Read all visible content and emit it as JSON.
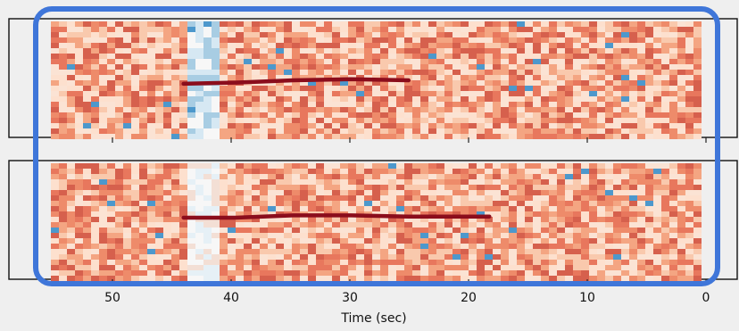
{
  "chart_data": [
    {
      "type": "heatmap",
      "panel": "top",
      "x_range": [
        56,
        0
      ],
      "time_axis_reversed": true,
      "colormap": "diverging red-blue (RdBu_r)",
      "track": {
        "start_time": 44.5,
        "end_time": 25,
        "color": "#8b0d1c",
        "note_values": [
          {
            "t": 44.5,
            "y": 0.55
          },
          {
            "t": 40,
            "y": 0.54
          },
          {
            "t": 35,
            "y": 0.52
          },
          {
            "t": 30,
            "y": 0.51
          },
          {
            "t": 25,
            "y": 0.52
          }
        ]
      },
      "low_band": {
        "t_start": 44.7,
        "t_end": 41.8,
        "color": "#4d98cc"
      }
    },
    {
      "type": "heatmap",
      "panel": "bottom",
      "x_range": [
        56,
        0
      ],
      "time_axis_reversed": true,
      "colormap": "diverging red-blue (RdBu_r)",
      "track": {
        "start_time": 44.5,
        "end_time": 18,
        "color": "#8b0d1c",
        "note_values": [
          {
            "t": 44.5,
            "y": 0.48
          },
          {
            "t": 40,
            "y": 0.48
          },
          {
            "t": 35,
            "y": 0.46
          },
          {
            "t": 30,
            "y": 0.46
          },
          {
            "t": 25,
            "y": 0.47
          },
          {
            "t": 20,
            "y": 0.47
          },
          {
            "t": 18,
            "y": 0.47
          }
        ]
      },
      "low_band": {
        "t_start": 44.7,
        "t_end": 41.8,
        "color": "#b8d6ea"
      }
    }
  ],
  "x_axis": {
    "label": "Time (sec)",
    "ticks": [
      {
        "value": 50,
        "label": "50"
      },
      {
        "value": 40,
        "label": "40"
      },
      {
        "value": 30,
        "label": "30"
      },
      {
        "value": 20,
        "label": "20"
      },
      {
        "value": 10,
        "label": "10"
      },
      {
        "value": 0,
        "label": "0"
      }
    ]
  },
  "colors": {
    "background": "#efefef",
    "highlight": "#3f76d9",
    "cell_palette": [
      "#f4a582",
      "#ee8b6a",
      "#e8775d",
      "#f9c9ad",
      "#fbe3d4",
      "#d6604d",
      "#fde0ce"
    ]
  }
}
